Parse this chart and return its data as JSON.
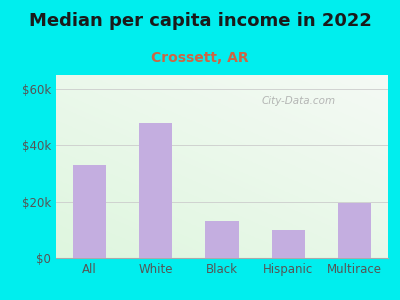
{
  "title": "Median per capita income in 2022",
  "subtitle": "Crossett, AR",
  "categories": [
    "All",
    "White",
    "Black",
    "Hispanic",
    "Multirace"
  ],
  "values": [
    33000,
    48000,
    13000,
    10000,
    19500
  ],
  "bar_color": "#c4aee0",
  "title_color": "#1a1a1a",
  "subtitle_color": "#cc6644",
  "background_outer": "#00eeee",
  "ylim": [
    0,
    65000
  ],
  "yticks": [
    0,
    20000,
    40000,
    60000
  ],
  "ytick_labels": [
    "$0",
    "$20k",
    "$40k",
    "$60k"
  ],
  "watermark": "City-Data.com",
  "title_fontsize": 13,
  "subtitle_fontsize": 10,
  "tick_fontsize": 8.5
}
